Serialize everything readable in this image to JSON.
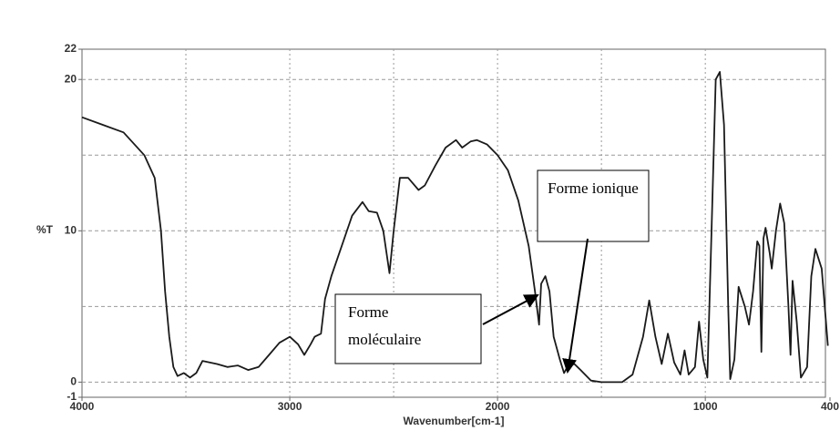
{
  "chart_data": {
    "type": "line",
    "xlabel": "Wavenumber[cm-1]",
    "ylabel": "%T",
    "xlim": [
      4000,
      400
    ],
    "ylim": [
      -1,
      22
    ],
    "xticks": [
      4000,
      3000,
      2000,
      1000,
      400
    ],
    "yticks": [
      -1,
      0,
      10,
      20,
      22
    ],
    "xgrid": [
      3500,
      3000,
      2500,
      2000,
      1500,
      1000
    ],
    "ygrid": [
      0,
      5,
      10,
      15,
      20
    ],
    "grid": true,
    "series": [
      {
        "color": "#1a1a1a",
        "x": [
          4000,
          3900,
          3800,
          3700,
          3650,
          3620,
          3600,
          3580,
          3560,
          3540,
          3510,
          3480,
          3450,
          3420,
          3350,
          3300,
          3250,
          3200,
          3150,
          3100,
          3050,
          3000,
          2960,
          2930,
          2900,
          2880,
          2850,
          2830,
          2800,
          2750,
          2700,
          2650,
          2620,
          2580,
          2550,
          2520,
          2500,
          2470,
          2430,
          2380,
          2350,
          2300,
          2250,
          2200,
          2170,
          2130,
          2100,
          2050,
          2000,
          1950,
          1900,
          1850,
          1820,
          1800,
          1790,
          1770,
          1750,
          1730,
          1700,
          1680,
          1660,
          1630,
          1600,
          1550,
          1500,
          1400,
          1350,
          1300,
          1270,
          1240,
          1210,
          1180,
          1150,
          1120,
          1100,
          1080,
          1050,
          1030,
          1010,
          990,
          970,
          950,
          930,
          910,
          890,
          880,
          860,
          840,
          810,
          790,
          770,
          750,
          740,
          730,
          720,
          710,
          690,
          680,
          660,
          640,
          620,
          600,
          590,
          580,
          560,
          540,
          510,
          490,
          470,
          440,
          410
        ],
        "values": [
          17.5,
          17,
          16.5,
          15,
          13.5,
          10,
          6,
          3,
          1,
          0.4,
          0.6,
          0.3,
          0.6,
          1.4,
          1.2,
          1.0,
          1.1,
          0.8,
          1.0,
          1.8,
          2.6,
          3.0,
          2.5,
          1.8,
          2.5,
          3.0,
          3.2,
          5.5,
          7,
          9,
          11,
          11.9,
          11.3,
          11.2,
          10,
          7.2,
          10,
          13.5,
          13.5,
          12.7,
          13,
          14.3,
          15.5,
          16,
          15.5,
          15.9,
          16,
          15.7,
          15,
          14,
          12,
          9,
          6,
          3.8,
          6.5,
          7,
          6,
          3,
          1.5,
          0.6,
          1.1,
          1.2,
          0.8,
          0.1,
          0,
          0,
          0.5,
          3,
          5.4,
          3,
          1.2,
          3.2,
          1.3,
          0.5,
          2.1,
          0.5,
          1,
          4,
          1.5,
          0.3,
          10,
          20,
          20.5,
          17,
          5,
          0.2,
          1.5,
          6.3,
          5,
          3.8,
          6,
          9.3,
          9,
          2,
          9.5,
          10.2,
          8.5,
          7.5,
          10,
          11.8,
          10.5,
          5,
          1.8,
          6.7,
          4,
          0.3,
          1,
          7,
          8.8,
          7.5,
          2.4
        ]
      }
    ],
    "annotations": [
      "Forme ionique",
      "Forme moléculaire"
    ]
  }
}
